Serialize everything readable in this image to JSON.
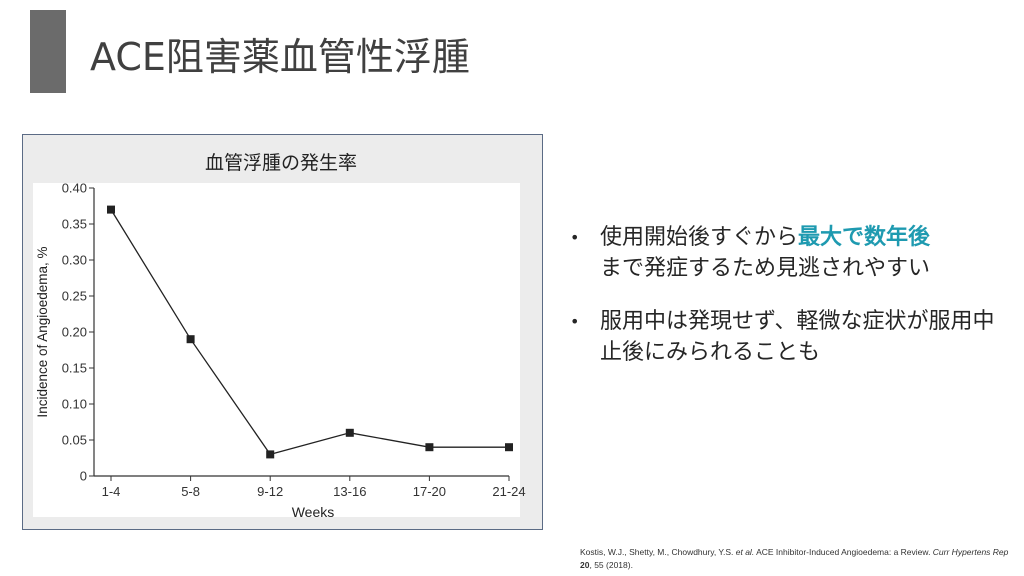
{
  "slide": {
    "title": "ACE阻害薬血管性浮腫",
    "bullets": [
      {
        "parts": [
          {
            "text": "使用開始後すぐから",
            "highlight": false
          },
          {
            "text": "最大で数年後",
            "highlight": true
          },
          {
            "text": "まで発症するため見逃されやすい",
            "highlight": false
          }
        ]
      },
      {
        "parts": [
          {
            "text": "服用中は発現せず、軽微な症状が服用中止後にみられることも",
            "highlight": false
          }
        ]
      }
    ],
    "bullet_symbol": "•",
    "highlight_color": "#1e9ab0",
    "citation": {
      "authors": "Kostis, W.J., Shetty, M., Chowdhury, Y.S. ",
      "etal": "et al.",
      "title": " ACE Inhibitor-Induced Angioedema: a Review. ",
      "journal": "Curr Hypertens Rep",
      "volume": " 20",
      "rest": ", 55 (2018)."
    }
  },
  "chart_data": {
    "type": "line",
    "title": "血管浮腫の発生率",
    "xlabel": "Weeks",
    "ylabel": "Incidence of Angioedema, %",
    "categories": [
      "1-4",
      "5-8",
      "9-12",
      "13-16",
      "17-20",
      "21-24"
    ],
    "values": [
      0.37,
      0.19,
      0.03,
      0.06,
      0.04,
      0.04
    ],
    "ylim": [
      0,
      0.4
    ],
    "yticks": [
      "0",
      "0.05",
      "0.10",
      "0.15",
      "0.20",
      "0.25",
      "0.30",
      "0.35",
      "0.40"
    ],
    "marker": "square",
    "grid": false,
    "legend": "none",
    "line_color": "#222222"
  }
}
